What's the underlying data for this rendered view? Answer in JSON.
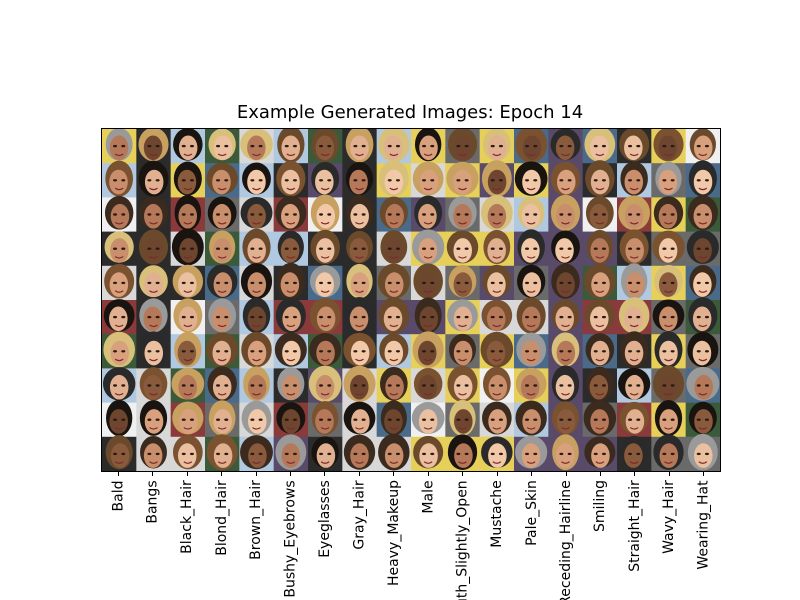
{
  "figure": {
    "title": "Example Generated Images: Epoch 14"
  },
  "grid": {
    "rows": 10,
    "columns": 18,
    "image_description": "grid of generated face thumbnails"
  },
  "x_tick_labels": [
    "Bald",
    "Bangs",
    "Black_Hair",
    "Blond_Hair",
    "Brown_Hair",
    "Bushy_Eyebrows",
    "Eyeglasses",
    "Gray_Hair",
    "Heavy_Makeup",
    "Male",
    "Mouth_Slightly_Open",
    "Mustache",
    "Pale_Skin",
    "Receding_Hairline",
    "Smiling",
    "Straight_Hair",
    "Wavy_Hair",
    "Wearing_Hat"
  ],
  "colors": {
    "skin_palette": [
      "#c98e6b",
      "#e0b090",
      "#8a5a3c",
      "#f1c9a8",
      "#b5795a",
      "#d9a07e",
      "#6e4630",
      "#eac0a0"
    ],
    "hair_palette": [
      "#1a1410",
      "#3b2a1e",
      "#6b4a2c",
      "#d8c07a",
      "#9a9a9a",
      "#2a2a2a",
      "#7a5230",
      "#c8a060"
    ],
    "background_palette": [
      "#2b2b2b",
      "#d8d8d8",
      "#4a6a8a",
      "#8a3a3a",
      "#e6d05a",
      "#3a5a3a",
      "#b0c8e0",
      "#5a4a6a",
      "#f0f0f0",
      "#6a6a6a"
    ]
  }
}
